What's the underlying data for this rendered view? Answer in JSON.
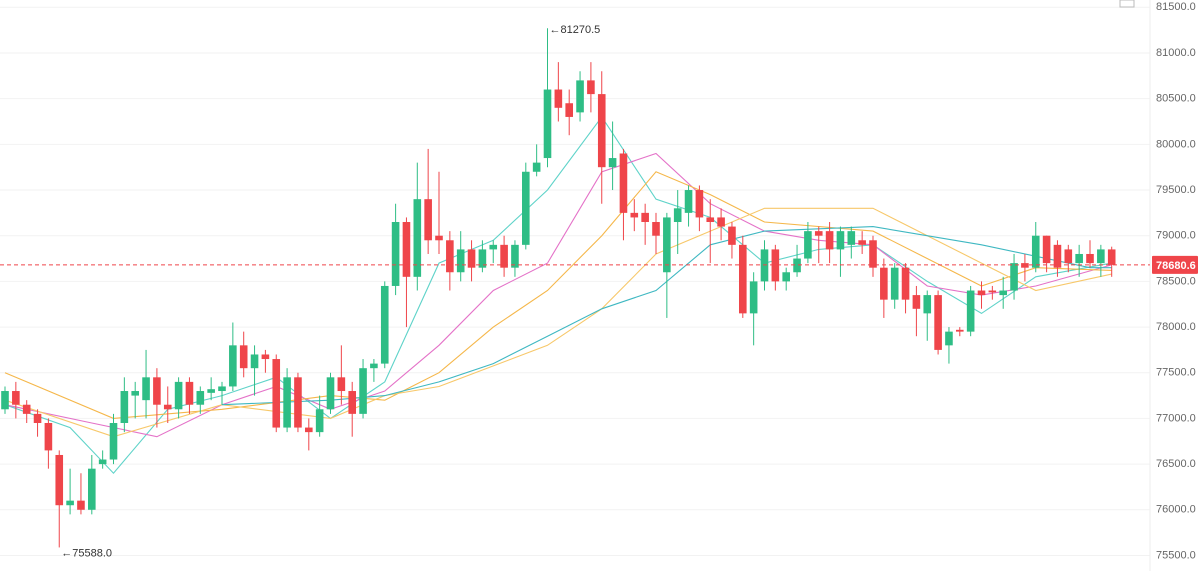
{
  "chart_data": {
    "type": "candlestick",
    "up_color": "#2ebd85",
    "down_color": "#ef454a",
    "grid": true,
    "ylim": [
      75330,
      81580
    ],
    "yticks": [
      {
        "value": 75500,
        "label": "75500.0"
      },
      {
        "value": 76000,
        "label": "76000.0"
      },
      {
        "value": 76500,
        "label": "76500.0"
      },
      {
        "value": 77000,
        "label": "77000.0"
      },
      {
        "value": 77500,
        "label": "77500.0"
      },
      {
        "value": 78000,
        "label": "78000.0"
      },
      {
        "value": 78500,
        "label": "78500.0"
      },
      {
        "value": 79000,
        "label": "79000.0"
      },
      {
        "value": 79500,
        "label": "79500.0"
      },
      {
        "value": 80000,
        "label": "80000.0"
      },
      {
        "value": 80500,
        "label": "80500.0"
      },
      {
        "value": 81000,
        "label": "81000.0"
      },
      {
        "value": 81500,
        "label": "81500.0"
      }
    ],
    "open": [
      77100,
      77300,
      77150,
      77050,
      76950,
      76600,
      76050,
      76100,
      76000,
      76500,
      76550,
      76950,
      77250,
      77200,
      77450,
      77150,
      77100,
      77400,
      77150,
      77280,
      77300,
      77350,
      77800,
      77550,
      77700,
      77650,
      76900,
      77450,
      76900,
      76850,
      77100,
      77450,
      77300,
      77050,
      77550,
      77600,
      78450,
      79150,
      78550,
      79400,
      79000,
      78950,
      78600,
      78850,
      78650,
      78850,
      78900,
      78650,
      78900,
      79700,
      79850,
      80600,
      80450,
      80350,
      80700,
      80550,
      79750,
      79900,
      79250,
      79250,
      79150,
      78600,
      79150,
      79250,
      79500,
      79200,
      79200,
      79100,
      78900,
      78150,
      78500,
      78850,
      78500,
      78600,
      78750,
      79050,
      79050,
      78850,
      78900,
      78950,
      78950,
      78650,
      78300,
      78650,
      78350,
      78150,
      78350,
      77800,
      77970,
      77950,
      78400,
      78400,
      78350,
      78400,
      78700,
      78650,
      79000,
      78900,
      78850,
      78700,
      78800,
      78700,
      78850
    ],
    "high": [
      77350,
      77400,
      77200,
      77100,
      77000,
      76650,
      76450,
      76400,
      76600,
      76650,
      77050,
      77450,
      77400,
      77750,
      77550,
      77350,
      77450,
      77450,
      77350,
      77450,
      77400,
      78050,
      77950,
      77800,
      77750,
      77700,
      77550,
      77500,
      77000,
      77250,
      77500,
      77800,
      77400,
      77650,
      77650,
      78500,
      79350,
      79200,
      79800,
      79950,
      79700,
      79050,
      79050,
      78950,
      78950,
      78950,
      79000,
      78950,
      79800,
      80000,
      81270.5,
      80900,
      80600,
      80800,
      80900,
      80800,
      80250,
      79950,
      79400,
      79350,
      79250,
      79250,
      79500,
      79550,
      79550,
      79400,
      79300,
      79150,
      79000,
      78600,
      78950,
      78900,
      78650,
      78900,
      79150,
      79100,
      79150,
      79100,
      79100,
      79050,
      79000,
      78750,
      78700,
      78700,
      78450,
      78400,
      78400,
      78000,
      78000,
      78450,
      78500,
      78450,
      78550,
      78800,
      78800,
      79150,
      79000,
      78950,
      78900,
      78900,
      78950,
      78900,
      78880
    ],
    "low": [
      77050,
      77000,
      76950,
      76800,
      76450,
      75588,
      75950,
      75950,
      75950,
      76450,
      76500,
      76850,
      77000,
      77000,
      76900,
      76950,
      77000,
      77050,
      77050,
      77200,
      77150,
      77300,
      77450,
      77250,
      77500,
      76850,
      76850,
      76850,
      76650,
      76800,
      77050,
      77150,
      76800,
      77000,
      77400,
      77550,
      78350,
      78000,
      78400,
      78800,
      78800,
      78400,
      78500,
      78500,
      78600,
      78700,
      78550,
      78550,
      78850,
      79650,
      79750,
      80250,
      80100,
      80250,
      80350,
      79350,
      79500,
      78950,
      79050,
      78900,
      78800,
      78100,
      78800,
      79100,
      79050,
      78700,
      78950,
      78750,
      78100,
      77800,
      78400,
      78400,
      78400,
      78550,
      78700,
      78700,
      78700,
      78550,
      78750,
      78800,
      78550,
      78100,
      78200,
      78150,
      77900,
      77850,
      77700,
      77600,
      77900,
      77900,
      78200,
      78300,
      78200,
      78300,
      78500,
      78600,
      78600,
      78550,
      78600,
      78550,
      78650,
      78550,
      78550
    ],
    "close": [
      77300,
      77150,
      77050,
      76950,
      76650,
      76050,
      76100,
      76000,
      76450,
      76550,
      76950,
      77300,
      77300,
      77450,
      77150,
      77100,
      77400,
      77150,
      77300,
      77320,
      77350,
      77800,
      77550,
      77700,
      77650,
      76900,
      77450,
      76900,
      76850,
      77100,
      77450,
      77300,
      77050,
      77550,
      77600,
      78450,
      79150,
      78550,
      79400,
      78950,
      78950,
      78600,
      78850,
      78650,
      78850,
      78900,
      78650,
      78900,
      79700,
      79800,
      80600,
      80400,
      80300,
      80700,
      80550,
      79750,
      79850,
      79250,
      79200,
      79150,
      79000,
      79200,
      79300,
      79500,
      79200,
      79150,
      79100,
      78900,
      78150,
      78500,
      78850,
      78500,
      78600,
      78750,
      79050,
      79000,
      78850,
      79050,
      79050,
      78900,
      78650,
      78300,
      78650,
      78300,
      78200,
      78350,
      77750,
      77950,
      77950,
      78400,
      78350,
      78380,
      78400,
      78700,
      78650,
      79000,
      78700,
      78650,
      78700,
      78800,
      78700,
      78850,
      78680.6
    ],
    "series": [
      {
        "color": "#5fd3c9",
        "x": [
          0,
          6,
          10,
          15,
          20,
          25,
          30,
          35,
          40,
          45,
          50,
          55,
          60,
          65,
          70,
          75,
          80,
          85,
          90,
          95,
          102
        ],
        "values": [
          77150,
          76900,
          76400,
          77100,
          77250,
          77450,
          77000,
          77400,
          78700,
          78950,
          79500,
          80300,
          79400,
          79200,
          78700,
          78850,
          78900,
          78500,
          78150,
          78550,
          78700
        ]
      },
      {
        "color": "#e472c8",
        "x": [
          0,
          8,
          14,
          20,
          25,
          30,
          35,
          40,
          45,
          50,
          55,
          60,
          65,
          70,
          75,
          80,
          85,
          90,
          95,
          102
        ],
        "values": [
          77150,
          76950,
          76800,
          77150,
          77350,
          77100,
          77300,
          77800,
          78400,
          78700,
          79700,
          79900,
          79350,
          79050,
          78950,
          78900,
          78450,
          78350,
          78450,
          78680
        ]
      },
      {
        "color": "#f5b74a",
        "x": [
          0,
          10,
          20,
          30,
          35,
          40,
          45,
          50,
          55,
          60,
          65,
          70,
          80,
          90,
          95,
          102
        ],
        "values": [
          77500,
          77000,
          77100,
          77250,
          77200,
          77500,
          78000,
          78400,
          79000,
          79700,
          79450,
          79150,
          79050,
          78450,
          78650,
          78620
        ]
      },
      {
        "color": "#f7c86a",
        "x": [
          0,
          10,
          20,
          30,
          35,
          40,
          50,
          55,
          60,
          70,
          80,
          90,
          95,
          102
        ],
        "values": [
          77200,
          76800,
          77150,
          77000,
          77250,
          77350,
          77800,
          78200,
          78800,
          79300,
          79300,
          78700,
          78400,
          78580
        ]
      },
      {
        "color": "#3fb8c2",
        "x": [
          20,
          30,
          35,
          40,
          45,
          50,
          55,
          60,
          65,
          70,
          80,
          90,
          100,
          102
        ],
        "values": [
          77150,
          77200,
          77250,
          77400,
          77600,
          77900,
          78200,
          78400,
          78900,
          79050,
          79100,
          78900,
          78650,
          78650
        ]
      }
    ],
    "annotations": [
      {
        "text": "81270.5",
        "x": 50,
        "y": 81270.5
      },
      {
        "text": "75588.0",
        "x": 5,
        "y": 75588
      }
    ],
    "last_price": {
      "value": 78680.6,
      "label": "78680.6"
    }
  }
}
